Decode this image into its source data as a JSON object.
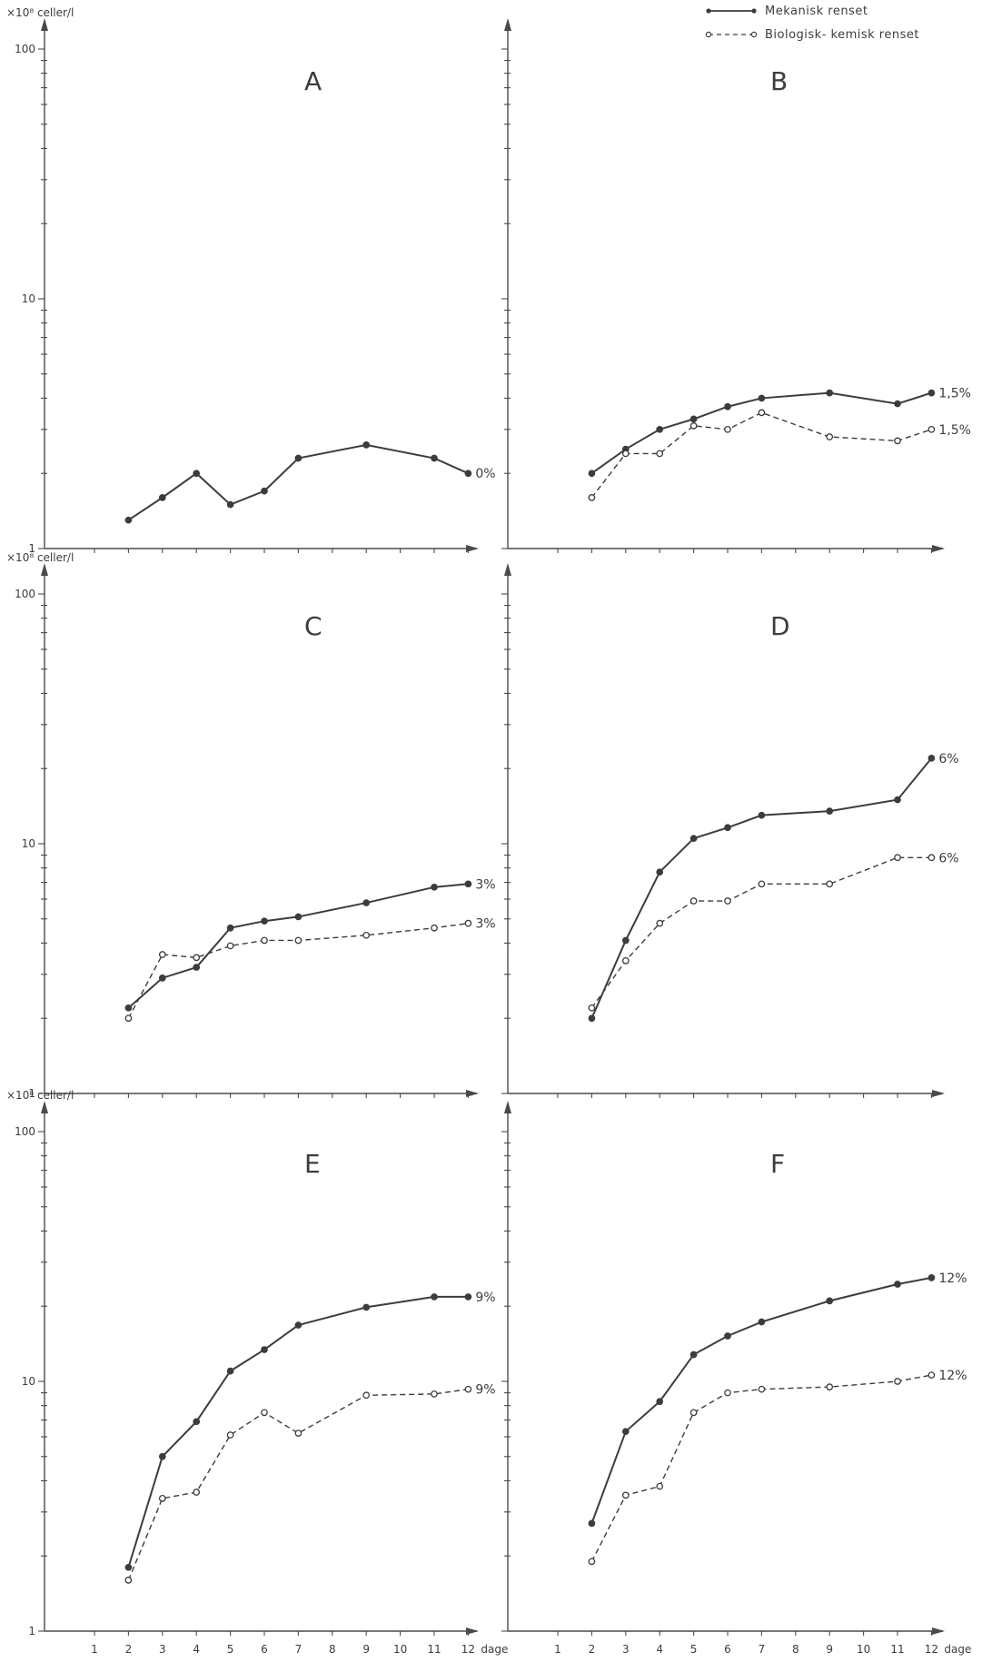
{
  "figure": {
    "legend": {
      "placement": "top-right",
      "items": [
        {
          "label": "Mekanisk renset",
          "style": "solid"
        },
        {
          "label": "Biologisk- kemisk renset",
          "style": "dashed"
        }
      ]
    },
    "ylabel": "×10⁸ celler/l",
    "xlabel": "dage",
    "y_scale": "log",
    "y_ticks": [
      "1",
      "10",
      "100"
    ],
    "x_ticks": [
      "1",
      "2",
      "3",
      "4",
      "5",
      "6",
      "7",
      "8",
      "9",
      "10",
      "11",
      "12"
    ],
    "colors": {
      "line": "#3c3c3c",
      "axis": "#4a4a4a"
    }
  },
  "chart_data": [
    {
      "type": "line",
      "panel": "A",
      "x": [
        2,
        3,
        4,
        5,
        6,
        7,
        9,
        11,
        12
      ],
      "ylim": [
        1,
        100
      ],
      "xlim": [
        0,
        12.9
      ],
      "y_scale": "log",
      "ylabel": "×10⁸ celler/l",
      "xlabel": "",
      "series": [
        {
          "style": "solid",
          "end_label": "0%",
          "values": [
            1.3,
            1.6,
            2.0,
            1.5,
            1.7,
            2.3,
            2.6,
            2.3,
            2.0
          ]
        }
      ]
    },
    {
      "type": "line",
      "panel": "B",
      "x": [
        2,
        3,
        4,
        5,
        6,
        7,
        9,
        11,
        12
      ],
      "ylim": [
        1,
        100
      ],
      "xlim": [
        0,
        12.9
      ],
      "y_scale": "log",
      "ylabel": "",
      "xlabel": "",
      "series": [
        {
          "name": "Mekanisk renset",
          "style": "solid",
          "end_label": "1,5%",
          "values": [
            2.0,
            2.5,
            3.0,
            3.3,
            3.7,
            4.0,
            4.2,
            3.8,
            4.2
          ]
        },
        {
          "name": "Biologisk- kemisk renset",
          "style": "dashed",
          "end_label": "1,5%",
          "values": [
            1.6,
            2.4,
            2.4,
            3.1,
            3.0,
            3.5,
            2.8,
            2.7,
            3.0
          ]
        }
      ]
    },
    {
      "type": "line",
      "panel": "C",
      "x": [
        2,
        3,
        4,
        5,
        6,
        7,
        9,
        11,
        12
      ],
      "ylim": [
        1,
        100
      ],
      "xlim": [
        0,
        12.9
      ],
      "y_scale": "log",
      "ylabel": "×10⁸ celler/l",
      "xlabel": "",
      "series": [
        {
          "name": "Mekanisk renset",
          "style": "solid",
          "end_label": "3%",
          "values": [
            2.2,
            2.9,
            3.2,
            4.6,
            4.9,
            5.1,
            5.8,
            6.7,
            6.9
          ]
        },
        {
          "name": "Biologisk- kemisk renset",
          "style": "dashed",
          "end_label": "3%",
          "values": [
            2.0,
            3.6,
            3.5,
            3.9,
            4.1,
            4.1,
            4.3,
            4.6,
            4.8
          ]
        }
      ]
    },
    {
      "type": "line",
      "panel": "D",
      "x": [
        2,
        3,
        4,
        5,
        6,
        7,
        9,
        11,
        12
      ],
      "ylim": [
        1,
        100
      ],
      "xlim": [
        0,
        12.9
      ],
      "y_scale": "log",
      "ylabel": "",
      "xlabel": "",
      "series": [
        {
          "name": "Mekanisk renset",
          "style": "solid",
          "end_label": "6%",
          "values": [
            2.0,
            4.1,
            7.7,
            10.5,
            11.6,
            13.0,
            13.5,
            15.0,
            22.0
          ]
        },
        {
          "name": "Biologisk- kemisk renset",
          "style": "dashed",
          "end_label": "6%",
          "values": [
            2.2,
            3.4,
            4.8,
            5.9,
            5.9,
            6.9,
            6.9,
            8.8,
            8.8
          ]
        }
      ]
    },
    {
      "type": "line",
      "panel": "E",
      "x": [
        2,
        3,
        4,
        5,
        6,
        7,
        9,
        11,
        12
      ],
      "ylim": [
        1,
        100
      ],
      "xlim": [
        0,
        12.9
      ],
      "y_scale": "log",
      "ylabel": "×10⁸ celler/l",
      "xlabel": "",
      "series": [
        {
          "name": "Mekanisk renset",
          "style": "solid",
          "end_label": "9%",
          "values": [
            1.8,
            5.0,
            6.9,
            11.0,
            13.4,
            16.8,
            19.8,
            21.8,
            21.8
          ]
        },
        {
          "name": "Biologisk- kemisk renset",
          "style": "dashed",
          "end_label": "9%",
          "values": [
            1.6,
            3.4,
            3.6,
            6.1,
            7.5,
            6.2,
            8.8,
            8.9,
            9.3
          ]
        }
      ]
    },
    {
      "type": "line",
      "panel": "F",
      "x": [
        2,
        3,
        4,
        5,
        6,
        7,
        9,
        11,
        12
      ],
      "ylim": [
        1,
        100
      ],
      "xlim": [
        0,
        12.9
      ],
      "y_scale": "log",
      "ylabel": "",
      "xlabel": "",
      "series": [
        {
          "name": "Mekanisk renset",
          "style": "solid",
          "end_label": "12%",
          "values": [
            2.7,
            6.3,
            8.3,
            12.8,
            15.2,
            17.3,
            21.0,
            24.5,
            26.0
          ]
        },
        {
          "name": "Biologisk- kemisk renset",
          "style": "dashed",
          "end_label": "12%",
          "values": [
            1.9,
            3.5,
            3.8,
            7.5,
            9.0,
            9.3,
            9.5,
            10.0,
            10.6
          ]
        }
      ]
    }
  ]
}
